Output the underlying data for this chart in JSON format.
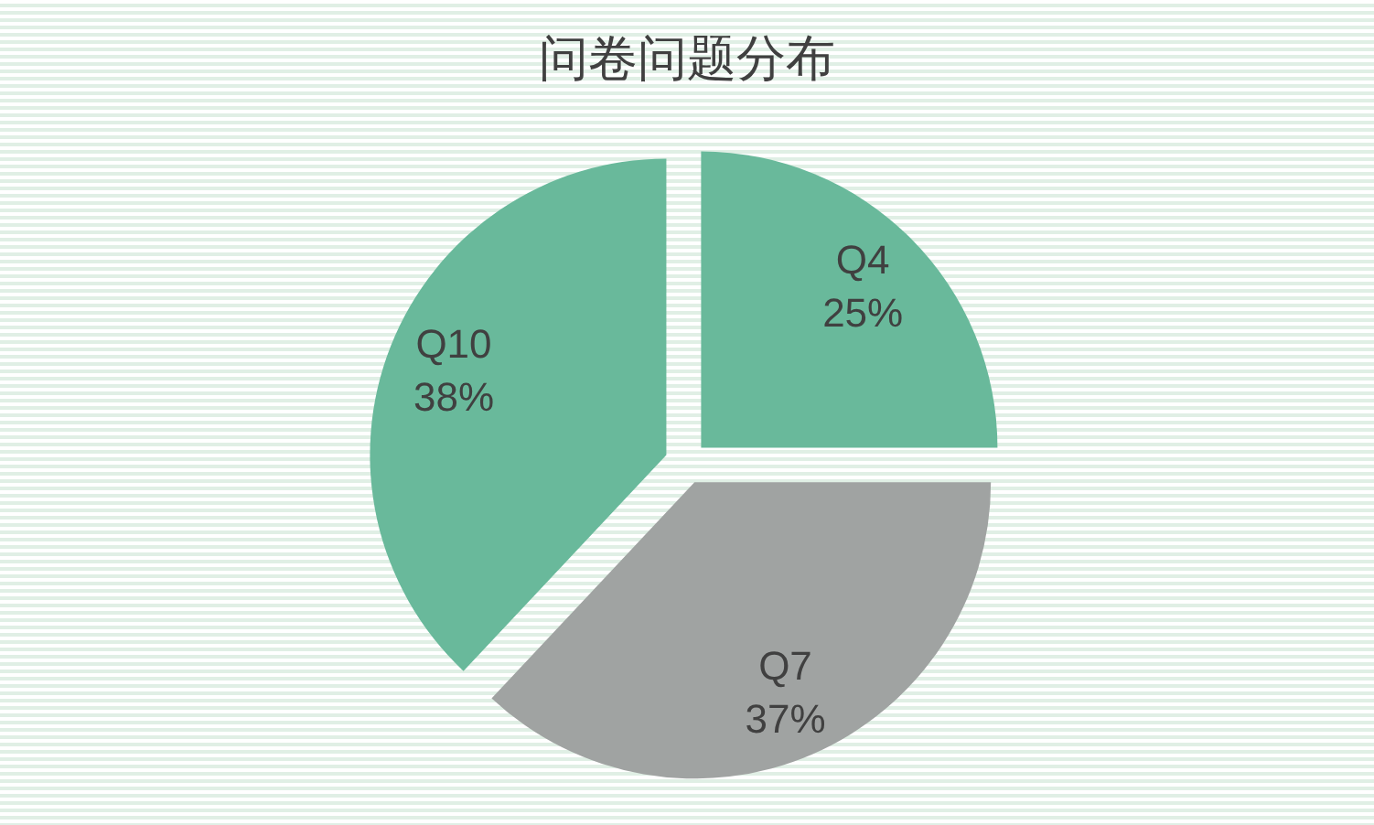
{
  "chart_data": {
    "type": "pie",
    "title": "问卷问题分布",
    "categories": [
      "Q4",
      "Q7",
      "Q10"
    ],
    "values": [
      25,
      37,
      38
    ],
    "colors": [
      "#69b99b",
      "#a0a3a2",
      "#69b99b"
    ],
    "value_labels": [
      "25%",
      "37%",
      "38%"
    ]
  }
}
